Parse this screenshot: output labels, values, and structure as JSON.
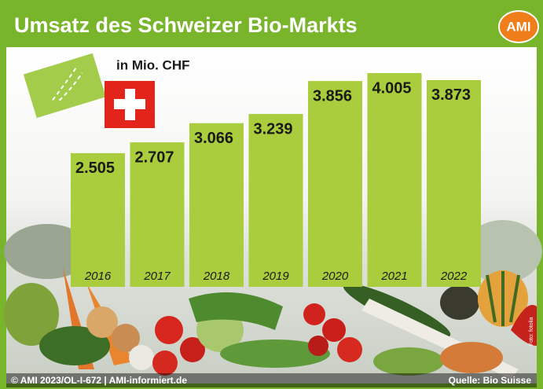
{
  "chart_data": {
    "type": "bar",
    "title": "Umsatz des Schweizer Bio-Markts",
    "subtitle": "in Mio. CHF",
    "logo": "AMI",
    "categories": [
      "2016",
      "2017",
      "2018",
      "2019",
      "2020",
      "2021",
      "2022"
    ],
    "values": [
      2505,
      2707,
      3066,
      3239,
      3856,
      4005,
      3873
    ],
    "value_labels": [
      "2.505",
      "2.707",
      "3.066",
      "3.239",
      "3.856",
      "4.005",
      "3.873"
    ],
    "color": "#a9cd3c",
    "footer": "© AMI 2023/OL-I-672 | AMI-informiert.de",
    "source": "Quelle: Bio Suisse",
    "photo_credit": "Foto: fotolia"
  }
}
